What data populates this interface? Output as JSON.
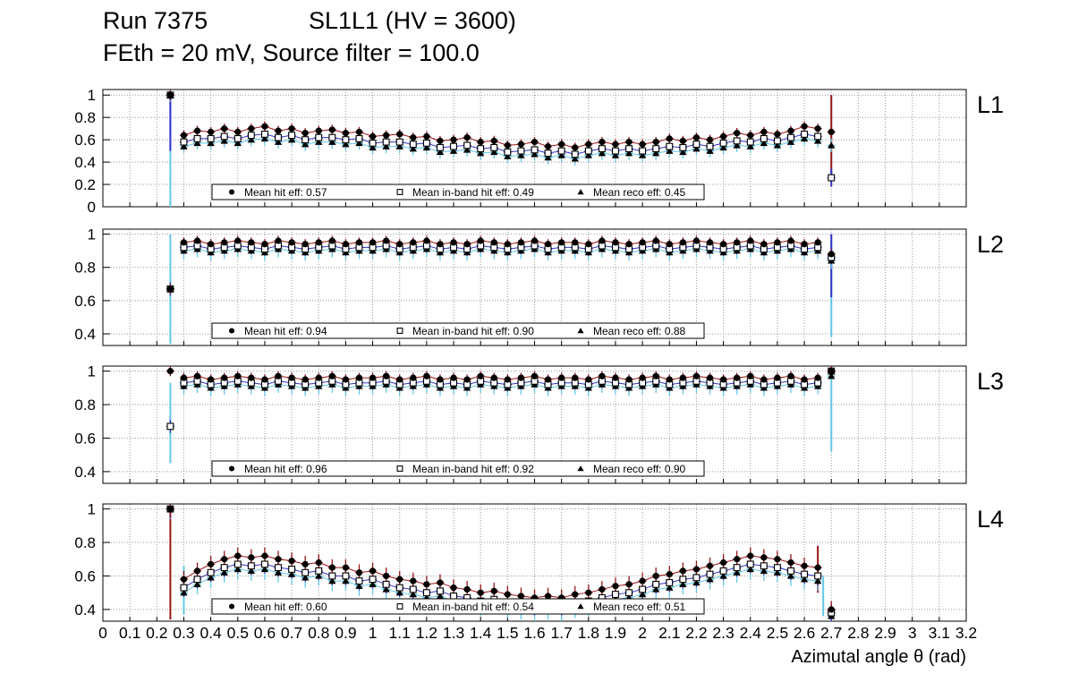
{
  "title": {
    "run": "Run 7375",
    "config": "SL1L1 (HV = 3600)",
    "line2": "FEth = 20 mV, Source filter = 100.0"
  },
  "x_axis": {
    "label": "Azimutal angle θ (rad)",
    "min": 0,
    "max": 3.2,
    "tick_step": 0.1,
    "tick_labels": [
      "0",
      "0.1",
      "0.2",
      "0.3",
      "0.4",
      "0.5",
      "0.6",
      "0.7",
      "0.8",
      "0.9",
      "1",
      "1.1",
      "1.2",
      "1.3",
      "1.4",
      "1.5",
      "1.6",
      "1.7",
      "1.8",
      "1.9",
      "2",
      "2.1",
      "2.2",
      "2.3",
      "2.4",
      "2.5",
      "2.6",
      "2.7",
      "2.8",
      "2.9",
      "3",
      "3.1",
      "3.2"
    ]
  },
  "colors": {
    "frame": "#000000",
    "grid": "#999999",
    "marker": "#000000",
    "hit_err": "#971414",
    "inband_err": "#3434c8",
    "reco_err": "#64c7e4"
  },
  "x_values": [
    0.25,
    0.3,
    0.35,
    0.4,
    0.45,
    0.5,
    0.55,
    0.6,
    0.65,
    0.7,
    0.75,
    0.8,
    0.85,
    0.9,
    0.95,
    1.0,
    1.05,
    1.1,
    1.15,
    1.2,
    1.25,
    1.3,
    1.35,
    1.4,
    1.45,
    1.5,
    1.55,
    1.6,
    1.65,
    1.7,
    1.75,
    1.8,
    1.85,
    1.9,
    1.95,
    2.0,
    2.05,
    2.1,
    2.15,
    2.2,
    2.25,
    2.3,
    2.35,
    2.4,
    2.45,
    2.5,
    2.55,
    2.6,
    2.65,
    2.7
  ],
  "chart_data": [
    {
      "type": "scatter",
      "label": "L1",
      "ylim": [
        0,
        1.05
      ],
      "yticks": [
        0,
        0.2,
        0.4,
        0.6,
        0.8,
        1
      ],
      "ytick_labels": [
        "0",
        "0.2",
        "0.4",
        "0.6",
        "0.8",
        "1"
      ],
      "legend": [
        {
          "marker": "circle",
          "text": "Mean hit  eff: 0.57"
        },
        {
          "marker": "square",
          "text": "Mean in-band hit eff: 0.49"
        },
        {
          "marker": "triangle",
          "text": "Mean reco eff: 0.45"
        }
      ],
      "series": [
        {
          "name": "hit",
          "marker": "circle",
          "color": "#971414",
          "err": 0.045,
          "values": [
            1.0,
            0.64,
            0.68,
            0.67,
            0.7,
            0.67,
            0.7,
            0.72,
            0.68,
            0.7,
            0.66,
            0.68,
            0.69,
            0.66,
            0.67,
            0.63,
            0.64,
            0.65,
            0.62,
            0.63,
            0.59,
            0.6,
            0.62,
            0.58,
            0.59,
            0.55,
            0.56,
            0.58,
            0.54,
            0.56,
            0.53,
            0.56,
            0.58,
            0.56,
            0.58,
            0.56,
            0.58,
            0.61,
            0.59,
            0.62,
            0.6,
            0.63,
            0.66,
            0.64,
            0.67,
            0.65,
            0.68,
            0.72,
            0.7,
            0.67
          ]
        },
        {
          "name": "inband",
          "marker": "square",
          "color": "#3434c8",
          "err": 0.05,
          "values": [
            1.0,
            0.58,
            0.61,
            0.61,
            0.63,
            0.61,
            0.64,
            0.65,
            0.62,
            0.64,
            0.6,
            0.62,
            0.62,
            0.6,
            0.61,
            0.57,
            0.58,
            0.58,
            0.56,
            0.57,
            0.53,
            0.54,
            0.55,
            0.52,
            0.53,
            0.49,
            0.5,
            0.51,
            0.48,
            0.5,
            0.47,
            0.5,
            0.52,
            0.5,
            0.52,
            0.5,
            0.52,
            0.54,
            0.53,
            0.56,
            0.54,
            0.57,
            0.59,
            0.58,
            0.61,
            0.59,
            0.62,
            0.65,
            0.63,
            0.26
          ]
        },
        {
          "name": "reco",
          "marker": "triangle",
          "color": "#64c7e4",
          "err": 0.06,
          "values": [
            1.0,
            0.54,
            0.57,
            0.57,
            0.59,
            0.57,
            0.6,
            0.61,
            0.58,
            0.6,
            0.56,
            0.58,
            0.58,
            0.56,
            0.57,
            0.53,
            0.54,
            0.54,
            0.52,
            0.53,
            0.49,
            0.5,
            0.51,
            0.48,
            0.49,
            0.45,
            0.46,
            0.47,
            0.44,
            0.46,
            0.43,
            0.46,
            0.48,
            0.46,
            0.48,
            0.46,
            0.48,
            0.5,
            0.49,
            0.52,
            0.5,
            0.53,
            0.55,
            0.54,
            0.57,
            0.55,
            0.58,
            0.61,
            0.59,
            0.55
          ]
        }
      ],
      "extra_bars": [
        {
          "x": 0.25,
          "y1": 0.0,
          "y2": 1.0,
          "color": "#64c7e4"
        },
        {
          "x": 0.25,
          "y1": 0.5,
          "y2": 1.0,
          "color": "#3434c8"
        },
        {
          "x": 2.7,
          "y1": 0.25,
          "y2": 1.0,
          "color": "#971414"
        },
        {
          "x": 2.7,
          "y1": 0.18,
          "y2": 0.34,
          "color": "#3434c8"
        }
      ]
    },
    {
      "type": "scatter",
      "label": "L2",
      "ylim": [
        0.33,
        1.03
      ],
      "yticks": [
        0.4,
        0.6,
        0.8,
        1
      ],
      "ytick_labels": [
        "0.4",
        "0.6",
        "0.8",
        "1"
      ],
      "legend": [
        {
          "marker": "circle",
          "text": "Mean hit  eff: 0.94"
        },
        {
          "marker": "square",
          "text": "Mean in-band hit eff: 0.90"
        },
        {
          "marker": "triangle",
          "text": "Mean reco eff: 0.88"
        }
      ],
      "series": [
        {
          "name": "hit",
          "marker": "circle",
          "color": "#971414",
          "err": 0.03,
          "values": [
            0.67,
            0.95,
            0.96,
            0.94,
            0.95,
            0.96,
            0.95,
            0.94,
            0.96,
            0.95,
            0.94,
            0.95,
            0.96,
            0.94,
            0.95,
            0.95,
            0.96,
            0.94,
            0.95,
            0.96,
            0.94,
            0.95,
            0.94,
            0.96,
            0.95,
            0.94,
            0.95,
            0.96,
            0.94,
            0.95,
            0.95,
            0.94,
            0.96,
            0.95,
            0.94,
            0.95,
            0.96,
            0.94,
            0.95,
            0.96,
            0.95,
            0.94,
            0.95,
            0.96,
            0.94,
            0.95,
            0.96,
            0.94,
            0.95,
            0.88
          ]
        },
        {
          "name": "inband",
          "marker": "square",
          "color": "#3434c8",
          "err": 0.04,
          "values": [
            0.67,
            0.92,
            0.93,
            0.91,
            0.92,
            0.93,
            0.92,
            0.91,
            0.93,
            0.92,
            0.91,
            0.92,
            0.93,
            0.91,
            0.92,
            0.92,
            0.93,
            0.91,
            0.92,
            0.93,
            0.91,
            0.92,
            0.91,
            0.93,
            0.92,
            0.91,
            0.92,
            0.93,
            0.91,
            0.92,
            0.92,
            0.91,
            0.93,
            0.92,
            0.91,
            0.92,
            0.93,
            0.91,
            0.92,
            0.93,
            0.92,
            0.91,
            0.92,
            0.93,
            0.91,
            0.92,
            0.93,
            0.91,
            0.92,
            0.86
          ]
        },
        {
          "name": "reco",
          "marker": "triangle",
          "color": "#64c7e4",
          "err": 0.05,
          "values": [
            0.67,
            0.9,
            0.91,
            0.89,
            0.9,
            0.91,
            0.9,
            0.89,
            0.91,
            0.9,
            0.89,
            0.9,
            0.91,
            0.89,
            0.9,
            0.9,
            0.91,
            0.89,
            0.9,
            0.91,
            0.89,
            0.9,
            0.89,
            0.91,
            0.9,
            0.89,
            0.9,
            0.91,
            0.89,
            0.9,
            0.9,
            0.89,
            0.91,
            0.9,
            0.89,
            0.9,
            0.91,
            0.89,
            0.9,
            0.91,
            0.9,
            0.89,
            0.9,
            0.91,
            0.89,
            0.9,
            0.91,
            0.89,
            0.9,
            0.84
          ]
        }
      ],
      "extra_bars": [
        {
          "x": 0.25,
          "y1": 0.34,
          "y2": 1.0,
          "color": "#64c7e4"
        },
        {
          "x": 2.7,
          "y1": 0.38,
          "y2": 1.0,
          "color": "#64c7e4"
        },
        {
          "x": 2.7,
          "y1": 0.62,
          "y2": 1.0,
          "color": "#3434c8"
        }
      ]
    },
    {
      "type": "scatter",
      "label": "L3",
      "ylim": [
        0.33,
        1.03
      ],
      "yticks": [
        0.4,
        0.6,
        0.8,
        1
      ],
      "ytick_labels": [
        "0.4",
        "0.6",
        "0.8",
        "1"
      ],
      "legend": [
        {
          "marker": "circle",
          "text": "Mean hit  eff: 0.96"
        },
        {
          "marker": "square",
          "text": "Mean in-band hit eff: 0.92"
        },
        {
          "marker": "triangle",
          "text": "Mean reco eff: 0.90"
        }
      ],
      "series": [
        {
          "name": "hit",
          "marker": "circle",
          "color": "#971414",
          "err": 0.03,
          "values": [
            1.0,
            0.96,
            0.97,
            0.95,
            0.96,
            0.97,
            0.96,
            0.95,
            0.97,
            0.96,
            0.95,
            0.96,
            0.97,
            0.95,
            0.96,
            0.96,
            0.97,
            0.95,
            0.96,
            0.97,
            0.95,
            0.96,
            0.95,
            0.97,
            0.96,
            0.95,
            0.96,
            0.97,
            0.95,
            0.96,
            0.96,
            0.95,
            0.97,
            0.96,
            0.95,
            0.96,
            0.97,
            0.95,
            0.96,
            0.97,
            0.96,
            0.95,
            0.96,
            0.97,
            0.95,
            0.96,
            0.97,
            0.95,
            0.96,
            1.0
          ]
        },
        {
          "name": "inband",
          "marker": "square",
          "color": "#3434c8",
          "err": 0.04,
          "values": [
            0.67,
            0.93,
            0.94,
            0.92,
            0.93,
            0.94,
            0.93,
            0.92,
            0.94,
            0.93,
            0.92,
            0.93,
            0.94,
            0.92,
            0.93,
            0.93,
            0.94,
            0.92,
            0.93,
            0.94,
            0.92,
            0.93,
            0.92,
            0.94,
            0.93,
            0.92,
            0.93,
            0.94,
            0.92,
            0.93,
            0.93,
            0.92,
            0.94,
            0.93,
            0.92,
            0.93,
            0.94,
            0.92,
            0.93,
            0.94,
            0.93,
            0.92,
            0.93,
            0.94,
            0.92,
            0.93,
            0.94,
            0.92,
            0.93,
            1.0
          ]
        },
        {
          "name": "reco",
          "marker": "triangle",
          "color": "#64c7e4",
          "err": 0.05,
          "values": [
            0.67,
            0.91,
            0.92,
            0.9,
            0.91,
            0.92,
            0.91,
            0.9,
            0.92,
            0.91,
            0.9,
            0.91,
            0.92,
            0.9,
            0.91,
            0.91,
            0.92,
            0.9,
            0.91,
            0.92,
            0.9,
            0.91,
            0.9,
            0.92,
            0.91,
            0.9,
            0.91,
            0.92,
            0.9,
            0.91,
            0.91,
            0.9,
            0.92,
            0.91,
            0.9,
            0.91,
            0.92,
            0.9,
            0.91,
            0.92,
            0.91,
            0.9,
            0.91,
            0.92,
            0.9,
            0.91,
            0.92,
            0.9,
            0.91,
            0.97
          ]
        }
      ],
      "extra_bars": [
        {
          "x": 0.25,
          "y1": 0.45,
          "y2": 0.93,
          "color": "#64c7e4"
        },
        {
          "x": 2.7,
          "y1": 0.52,
          "y2": 1.0,
          "color": "#64c7e4"
        }
      ]
    },
    {
      "type": "scatter",
      "label": "L4",
      "ylim": [
        0.33,
        1.03
      ],
      "yticks": [
        0.4,
        0.6,
        0.8,
        1
      ],
      "ytick_labels": [
        "0.4",
        "0.6",
        "0.8",
        "1"
      ],
      "legend": [
        {
          "marker": "circle",
          "text": "Mean hit  eff: 0.60"
        },
        {
          "marker": "square",
          "text": "Mean in-band hit eff: 0.54"
        },
        {
          "marker": "triangle",
          "text": "Mean reco eff: 0.51"
        }
      ],
      "series": [
        {
          "name": "hit",
          "marker": "circle",
          "color": "#971414",
          "err": 0.05,
          "values": [
            1.0,
            0.58,
            0.63,
            0.67,
            0.7,
            0.72,
            0.71,
            0.72,
            0.7,
            0.69,
            0.67,
            0.68,
            0.65,
            0.65,
            0.62,
            0.63,
            0.6,
            0.58,
            0.57,
            0.55,
            0.56,
            0.53,
            0.52,
            0.5,
            0.51,
            0.49,
            0.48,
            0.47,
            0.48,
            0.47,
            0.49,
            0.5,
            0.52,
            0.54,
            0.55,
            0.57,
            0.6,
            0.61,
            0.63,
            0.64,
            0.66,
            0.68,
            0.7,
            0.72,
            0.71,
            0.7,
            0.68,
            0.66,
            0.65,
            0.4
          ]
        },
        {
          "name": "inband",
          "marker": "square",
          "color": "#3434c8",
          "err": 0.055,
          "values": [
            1.0,
            0.53,
            0.58,
            0.62,
            0.65,
            0.67,
            0.66,
            0.67,
            0.65,
            0.64,
            0.62,
            0.63,
            0.6,
            0.6,
            0.57,
            0.58,
            0.55,
            0.53,
            0.52,
            0.5,
            0.51,
            0.48,
            0.47,
            0.45,
            0.46,
            0.44,
            0.43,
            0.42,
            0.43,
            0.42,
            0.44,
            0.45,
            0.47,
            0.49,
            0.5,
            0.52,
            0.55,
            0.56,
            0.58,
            0.59,
            0.61,
            0.63,
            0.65,
            0.67,
            0.66,
            0.65,
            0.63,
            0.61,
            0.6,
            0.38
          ]
        },
        {
          "name": "reco",
          "marker": "triangle",
          "color": "#64c7e4",
          "err": 0.06,
          "values": [
            1.0,
            0.5,
            0.55,
            0.59,
            0.62,
            0.64,
            0.63,
            0.64,
            0.62,
            0.61,
            0.59,
            0.6,
            0.57,
            0.57,
            0.54,
            0.55,
            0.52,
            0.5,
            0.49,
            0.47,
            0.48,
            0.45,
            0.44,
            0.42,
            0.43,
            0.41,
            0.4,
            0.39,
            0.4,
            0.39,
            0.41,
            0.42,
            0.44,
            0.46,
            0.47,
            0.49,
            0.52,
            0.53,
            0.55,
            0.56,
            0.58,
            0.6,
            0.62,
            0.64,
            0.63,
            0.62,
            0.6,
            0.58,
            0.57,
            0.36
          ]
        }
      ],
      "extra_bars": [
        {
          "x": 0.25,
          "y1": 0.34,
          "y2": 1.0,
          "color": "#971414"
        },
        {
          "x": 0.3,
          "y1": 0.37,
          "y2": 0.66,
          "color": "#64c7e4"
        },
        {
          "x": 2.65,
          "y1": 0.5,
          "y2": 0.78,
          "color": "#971414"
        },
        {
          "x": 2.67,
          "y1": 0.36,
          "y2": 0.6,
          "color": "#64c7e4"
        }
      ]
    }
  ]
}
